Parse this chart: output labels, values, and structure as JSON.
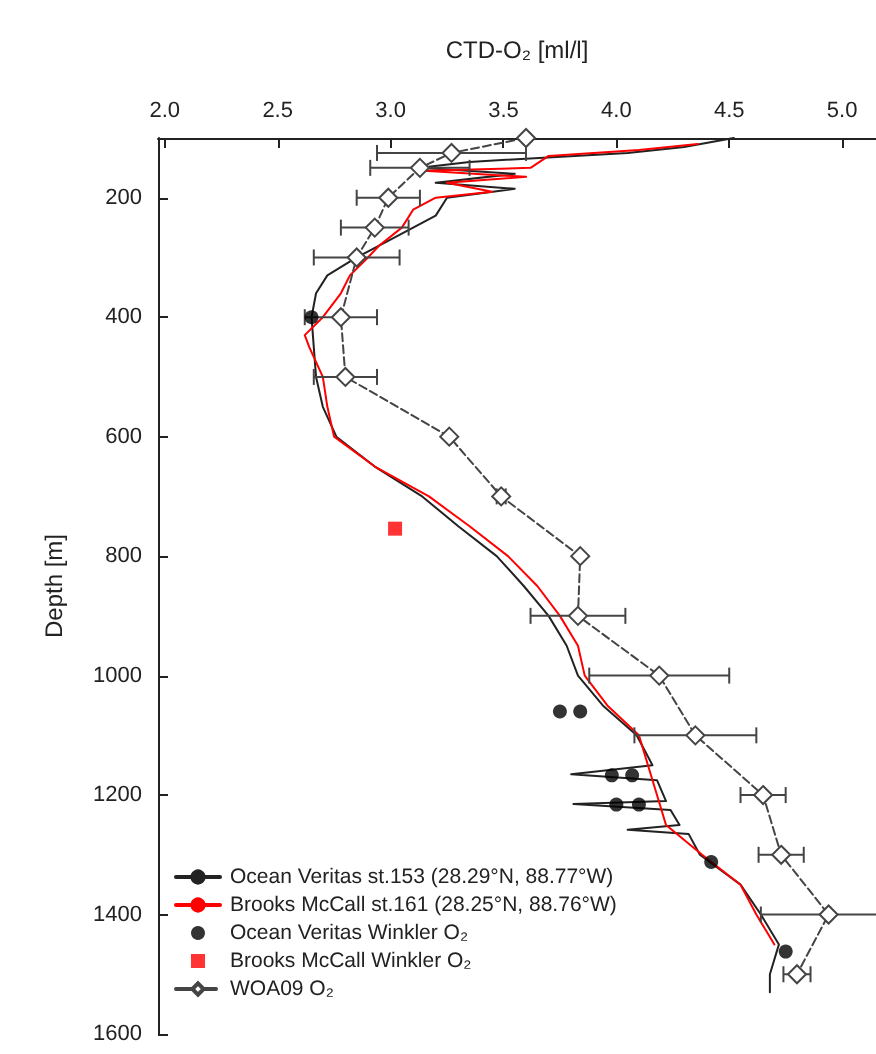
{
  "chart_data": {
    "type": "line",
    "xlabel": "CTD-O₂ [ml/l]",
    "ylabel": "Depth [m]",
    "xlim": [
      1.97,
      5.15
    ],
    "xticks": [
      {
        "value": 2,
        "label": "2.0"
      },
      {
        "value": 2.5,
        "label": "2.5"
      },
      {
        "value": 3,
        "label": "3.0"
      },
      {
        "value": 3.5,
        "label": "3.5"
      },
      {
        "value": 4,
        "label": "4.0"
      },
      {
        "value": 4.5,
        "label": "4.5"
      },
      {
        "value": 5,
        "label": "5.0"
      }
    ],
    "ylim": [
      1600,
      100
    ],
    "yticks": [
      200,
      400,
      600,
      800,
      1000,
      1200,
      1400,
      1600
    ],
    "legend": "bottom left",
    "series": [
      {
        "name": "Ocean Veritas st.153 (28.29°N, 88.77°W)",
        "type": "line",
        "color": "#222222",
        "marker": "none",
        "line_style": "solid",
        "x": [
          4.52,
          4.3,
          4.05,
          3.35,
          3.13,
          3.55,
          3.2,
          3.55,
          3.25,
          3.2,
          3.05,
          2.85,
          2.72,
          2.67,
          2.65,
          2.66,
          2.67,
          2.7,
          2.76,
          2.93,
          3.14,
          3.3,
          3.47,
          3.59,
          3.7,
          3.78,
          3.83,
          3.94,
          4.09,
          4.16,
          3.8,
          4.18,
          4.22,
          3.81,
          4.24,
          4.28,
          4.05,
          4.32,
          4.37,
          4.55,
          4.64,
          4.72,
          4.68,
          4.68
        ],
        "values": [
          100,
          115,
          125,
          140,
          150,
          160,
          175,
          185,
          200,
          230,
          260,
          300,
          330,
          360,
          400,
          450,
          500,
          550,
          600,
          650,
          700,
          750,
          800,
          850,
          900,
          950,
          1000,
          1050,
          1100,
          1150,
          1165,
          1175,
          1210,
          1215,
          1225,
          1250,
          1258,
          1265,
          1300,
          1350,
          1400,
          1450,
          1500,
          1530
        ]
      },
      {
        "name": "Brooks McCall st.161 (28.25°N, 88.76°W)",
        "type": "line",
        "color": "#ff0000",
        "marker": "none",
        "line_style": "solid",
        "x": [
          4.36,
          4.1,
          3.7,
          3.62,
          3.15,
          3.6,
          3.25,
          3.45,
          3.2,
          3.1,
          3.05,
          2.95,
          2.9,
          2.82,
          2.78,
          2.7,
          2.62,
          2.64,
          2.7,
          2.72,
          2.75,
          2.93,
          3.17,
          3.35,
          3.52,
          3.65,
          3.75,
          3.83,
          3.86,
          3.96,
          4.1,
          4.14,
          4.18,
          4.22,
          4.38,
          4.55,
          4.62,
          4.7
        ],
        "values": [
          110,
          120,
          130,
          150,
          155,
          165,
          175,
          190,
          200,
          220,
          250,
          280,
          300,
          330,
          360,
          400,
          430,
          450,
          500,
          550,
          600,
          650,
          700,
          750,
          800,
          850,
          900,
          950,
          1000,
          1050,
          1100,
          1150,
          1200,
          1250,
          1300,
          1350,
          1400,
          1450
        ]
      },
      {
        "name": "Ocean Veritas Winkler O₂",
        "type": "scatter",
        "color": "#000000",
        "marker": "circle",
        "x": [
          2.65,
          3.75,
          3.84,
          3.98,
          4.07,
          4.0,
          4.1,
          4.42,
          4.75
        ],
        "values": [
          400,
          1060,
          1060,
          1167,
          1167,
          1216,
          1216,
          1312,
          1462
        ]
      },
      {
        "name": "Brooks McCall Winkler O₂",
        "type": "scatter",
        "color": "#ff0000",
        "marker": "square",
        "x": [
          3.02
        ],
        "values": [
          754
        ]
      },
      {
        "name": "WOA09 O₂",
        "type": "line",
        "color": "#444444",
        "marker": "diamond",
        "line_style": "dashed",
        "x": [
          3.6,
          3.27,
          3.13,
          2.99,
          2.93,
          2.85,
          2.78,
          2.8,
          3.26,
          3.49,
          3.84,
          3.83,
          4.19,
          4.35,
          4.65,
          4.73,
          4.94,
          4.8
        ],
        "values": [
          100,
          125,
          150,
          200,
          250,
          300,
          400,
          500,
          600,
          700,
          800,
          900,
          1000,
          1100,
          1200,
          1300,
          1400,
          1500
        ],
        "xerrors": [
          null,
          0.33,
          0.22,
          0.14,
          0.15,
          0.19,
          0.16,
          0.14,
          null,
          0.02,
          null,
          0.21,
          0.31,
          0.27,
          0.1,
          0.1,
          0.3,
          0.06
        ]
      }
    ]
  }
}
